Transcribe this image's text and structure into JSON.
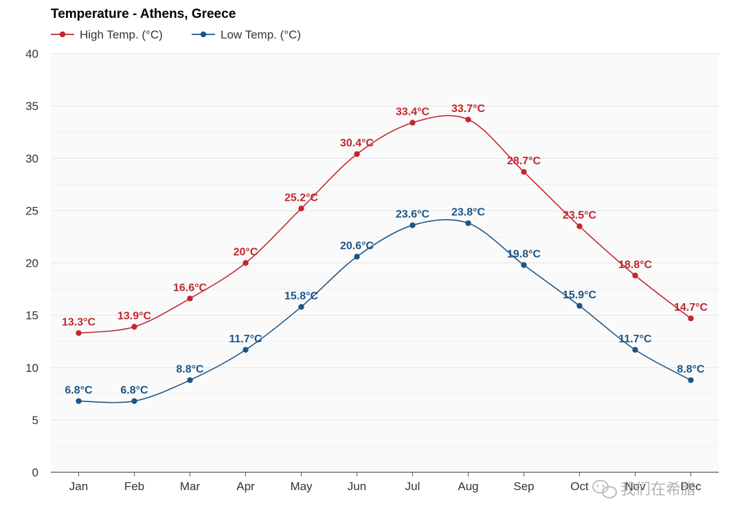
{
  "chart_data": {
    "type": "line",
    "title": "Temperature - Athens, Greece",
    "categories": [
      "Jan",
      "Feb",
      "Mar",
      "Apr",
      "May",
      "Jun",
      "Jul",
      "Aug",
      "Sep",
      "Oct",
      "Nov",
      "Dec"
    ],
    "series": [
      {
        "name": "High Temp. (°C)",
        "color": "#c0282d",
        "values": [
          13.3,
          13.9,
          16.6,
          20,
          25.2,
          30.4,
          33.4,
          33.7,
          28.7,
          23.5,
          18.8,
          14.7
        ],
        "labels": [
          "13.3°C",
          "13.9°C",
          "16.6°C",
          "20°C",
          "25.2°C",
          "30.4°C",
          "33.4°C",
          "33.7°C",
          "28.7°C",
          "23.5°C",
          "18.8°C",
          "14.7°C"
        ]
      },
      {
        "name": "Low Temp. (°C)",
        "color": "#1b5688",
        "values": [
          6.8,
          6.8,
          8.8,
          11.7,
          15.8,
          20.6,
          23.6,
          23.8,
          19.8,
          15.9,
          11.7,
          8.8
        ],
        "labels": [
          "6.8°C",
          "6.8°C",
          "8.8°C",
          "11.7°C",
          "15.8°C",
          "20.6°C",
          "23.6°C",
          "23.8°C",
          "19.8°C",
          "15.9°C",
          "11.7°C",
          "8.8°C"
        ]
      }
    ],
    "ylim": [
      0,
      40
    ],
    "yticks": [
      0,
      5,
      10,
      15,
      20,
      25,
      30,
      35,
      40
    ],
    "xlabel": "",
    "ylabel": "",
    "grid": true,
    "legend": "top-left"
  },
  "watermark": {
    "text": "我们在希腊",
    "icon": "wechat-icon"
  }
}
